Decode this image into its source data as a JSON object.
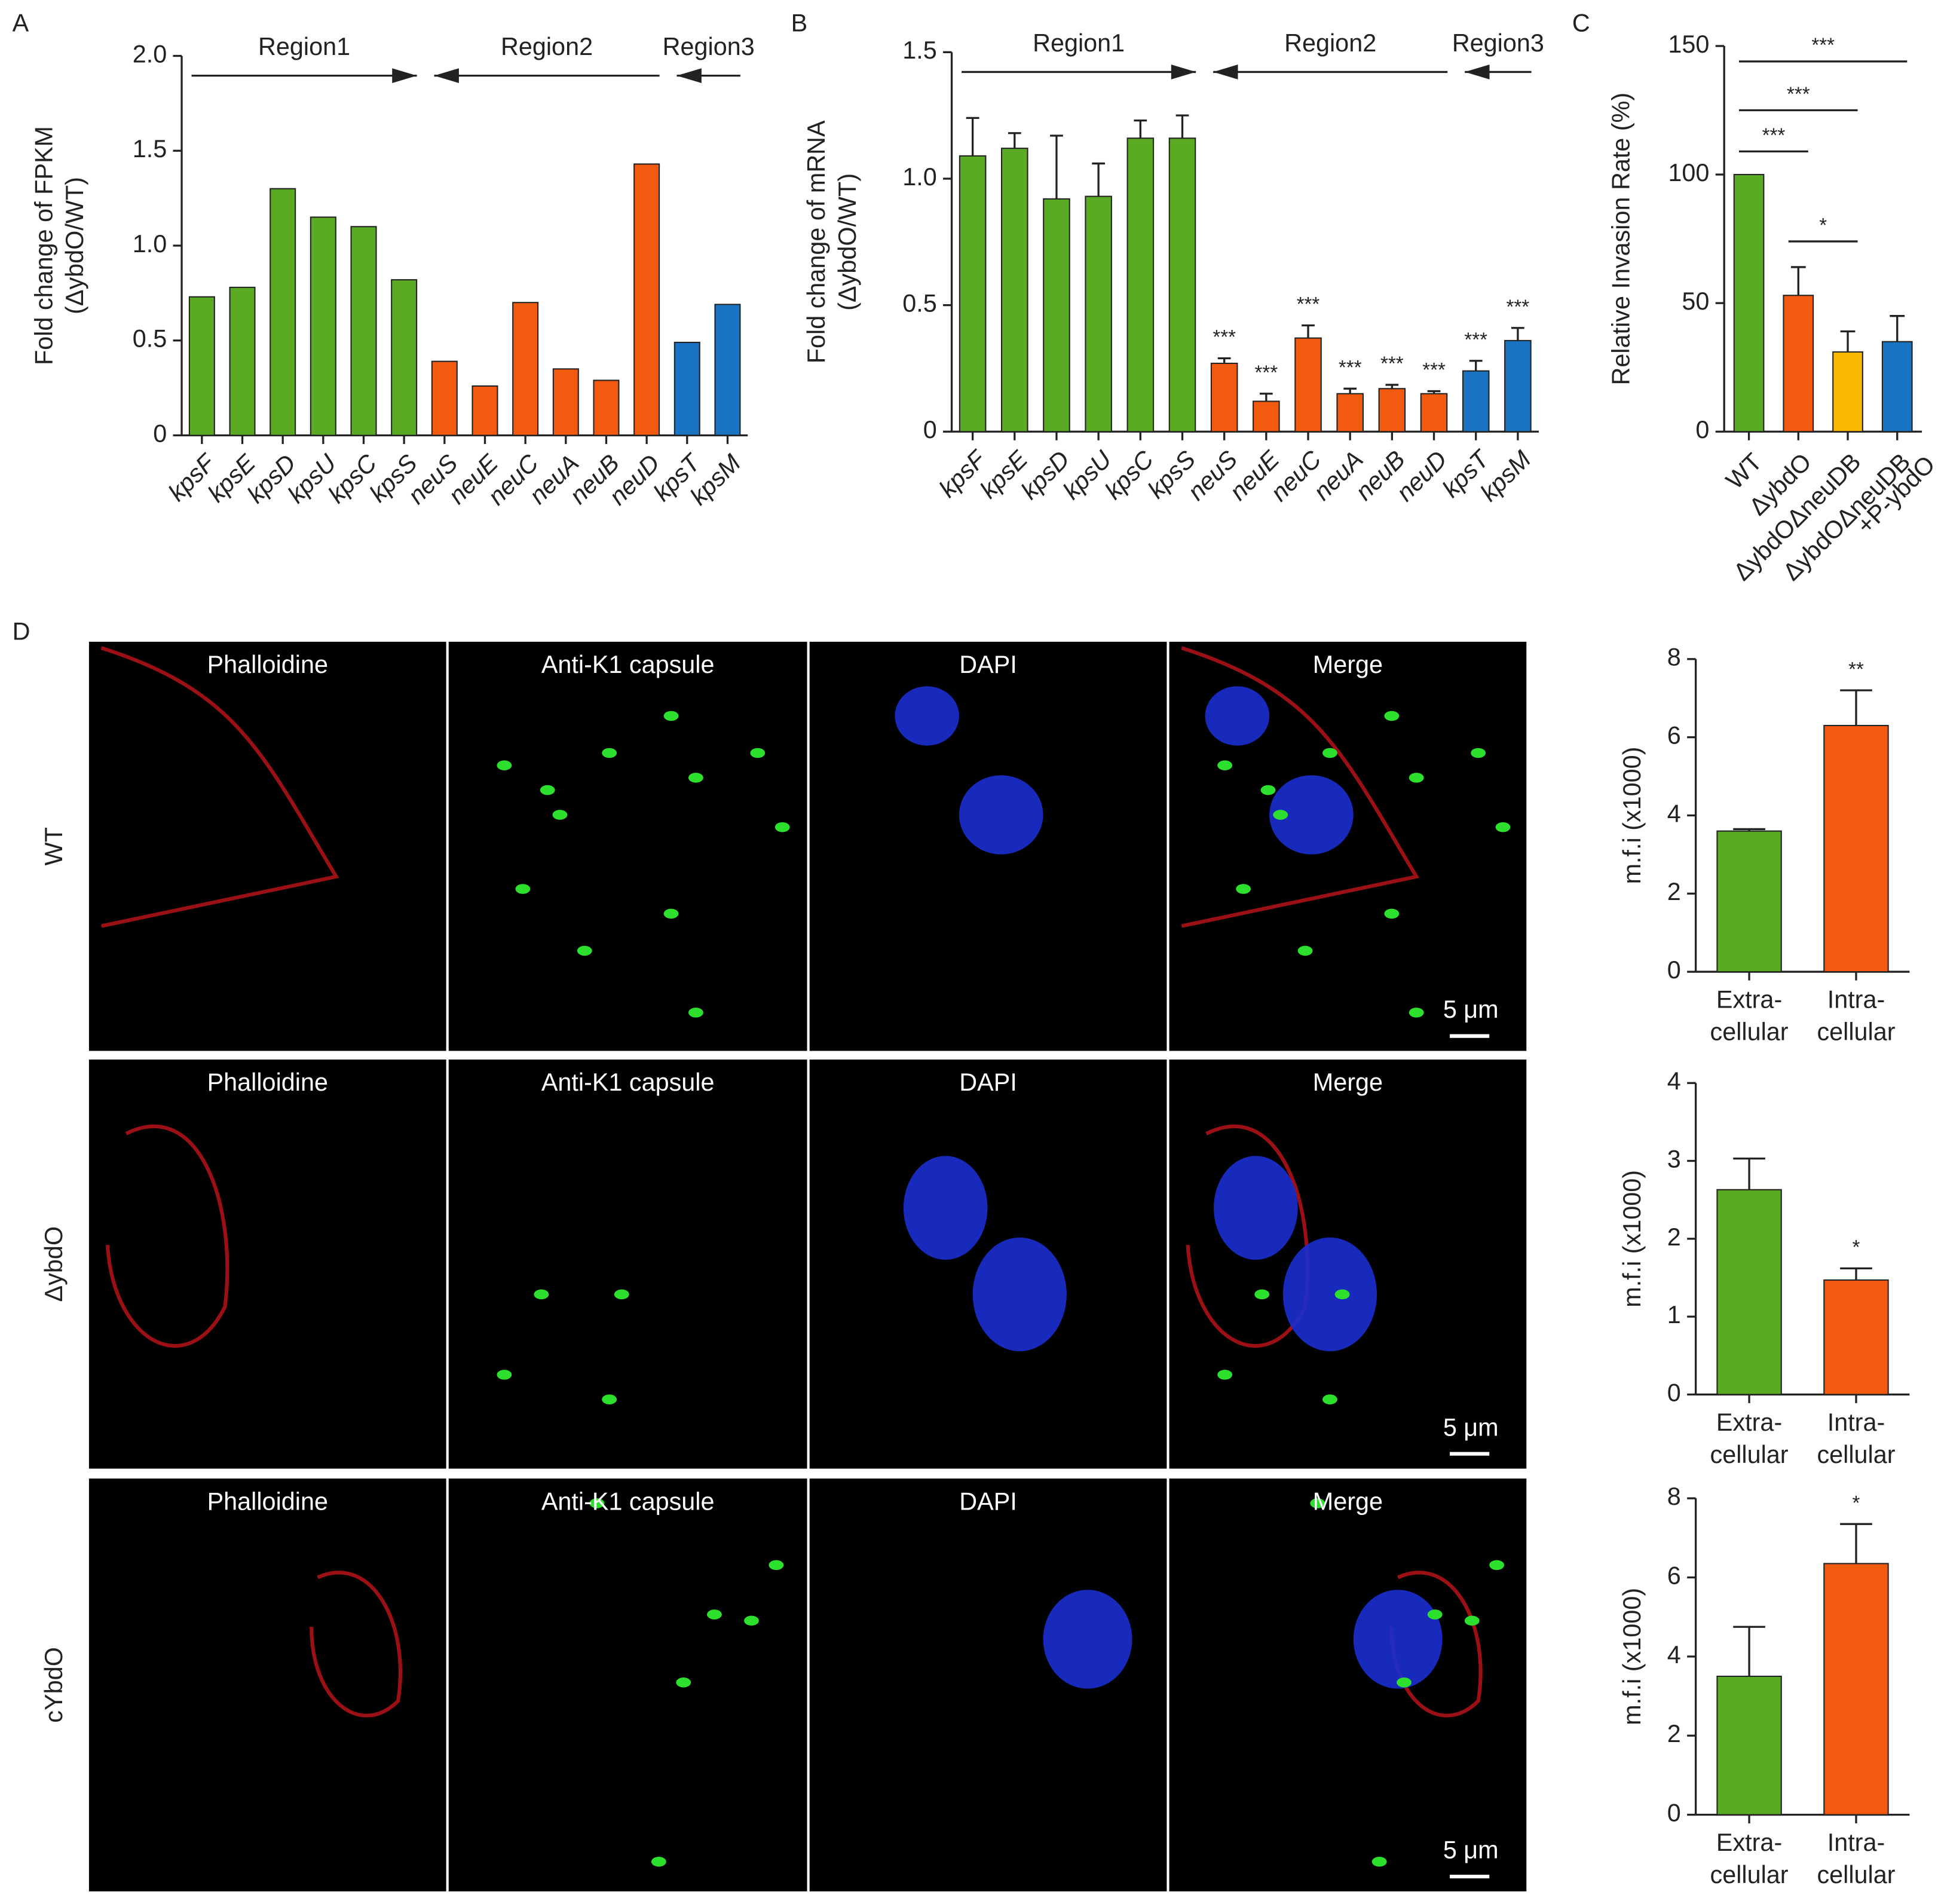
{
  "chart_data": [
    {
      "type": "bar",
      "label": "A",
      "ylabel": [
        "Fold change of FPKM",
        "(ΔybdO/WT)"
      ],
      "annotations": [
        "Region1",
        "Region2",
        "Region3"
      ],
      "categories": [
        "kpsF",
        "kpsE",
        "kpsD",
        "kpsU",
        "kpsC",
        "kpsS",
        "neuS",
        "neuE",
        "neuC",
        "neuA",
        "neuB",
        "neuD",
        "kpsT",
        "kpsM"
      ],
      "values": [
        0.73,
        0.78,
        1.3,
        1.15,
        1.1,
        0.82,
        0.39,
        0.26,
        0.7,
        0.35,
        0.29,
        1.43,
        0.49,
        0.69
      ],
      "colors": [
        "#5aab23",
        "#5aab23",
        "#5aab23",
        "#5aab23",
        "#5aab23",
        "#5aab23",
        "#f25a0f",
        "#f25a0f",
        "#f25a0f",
        "#f25a0f",
        "#f25a0f",
        "#f25a0f",
        "#1a74c4",
        "#1a74c4"
      ],
      "ylim": [
        0,
        2
      ],
      "yticks": [
        0,
        0.5,
        {
          "value": 1,
          "label": "1.0"
        },
        1.5,
        {
          "value": 2,
          "label": "2.0"
        }
      ]
    },
    {
      "type": "bar",
      "label": "B",
      "ylabel": [
        "Fold change of mRNA",
        "(ΔybdO/WT)"
      ],
      "annotations": [
        "Region1",
        "Region2",
        "Region3"
      ],
      "categories": [
        "kpsF",
        "kpsE",
        "kpsD",
        "kpsU",
        "kpsC",
        "kpsS",
        "neuS",
        "neuE",
        "neuC",
        "neuA",
        "neuB",
        "neuD",
        "kpsT",
        "kpsM"
      ],
      "values": [
        1.09,
        1.12,
        0.92,
        0.93,
        1.16,
        1.16,
        0.27,
        0.12,
        0.37,
        0.15,
        0.17,
        0.15,
        0.24,
        0.36
      ],
      "errors": [
        0.15,
        0.06,
        0.25,
        0.13,
        0.07,
        0.09,
        0.02,
        0.03,
        0.05,
        0.02,
        0.015,
        0.01,
        0.04,
        0.05
      ],
      "significance": [
        null,
        null,
        null,
        null,
        null,
        null,
        "***",
        "***",
        "***",
        "***",
        "***",
        "***",
        "***",
        "***"
      ],
      "colors": [
        "#5aab23",
        "#5aab23",
        "#5aab23",
        "#5aab23",
        "#5aab23",
        "#5aab23",
        "#f25a0f",
        "#f25a0f",
        "#f25a0f",
        "#f25a0f",
        "#f25a0f",
        "#f25a0f",
        "#1a74c4",
        "#1a74c4"
      ],
      "ylim": [
        0,
        1.5
      ],
      "yticks": [
        0,
        0.5,
        {
          "value": 1,
          "label": "1.0"
        },
        1.5
      ]
    },
    {
      "type": "bar",
      "label": "C",
      "ylabel": [
        "Relative Invasion Rate (%)"
      ],
      "categories": [
        [
          "WT"
        ],
        [
          "ΔybdO"
        ],
        [
          "ΔybdOΔneuDB"
        ],
        [
          "ΔybdOΔneuDB",
          "+P-ybdO"
        ]
      ],
      "values": [
        100,
        53,
        31,
        35
      ],
      "errors": [
        0,
        11,
        8,
        10
      ],
      "colors": [
        "#5aab23",
        "#f25a0f",
        "#f9b800",
        "#1a74c4"
      ],
      "comparisons": [
        {
          "between": [
            "WT",
            "ΔybdO"
          ],
          "label": "***"
        },
        {
          "between": [
            "WT",
            "ΔybdOΔneuDB"
          ],
          "label": "***"
        },
        {
          "between": [
            "WT",
            "ΔybdOΔneuDB +P-ybdO"
          ],
          "label": "***"
        },
        {
          "between": [
            "ΔybdO",
            "ΔybdOΔneuDB"
          ],
          "label": "*"
        }
      ],
      "ylim": [
        0,
        150
      ],
      "yticks": [
        0,
        50,
        100,
        150
      ]
    },
    {
      "type": "bar",
      "ylabel": [
        "m.f.i (x1000)"
      ],
      "categories": [
        [
          "Extra-",
          "cellular"
        ],
        [
          "Intra-",
          "cellular"
        ]
      ],
      "values": [
        3.6,
        6.3
      ],
      "errors": [
        0.05,
        0.9
      ],
      "significance": [
        null,
        "**"
      ],
      "colors": [
        "#5aab23",
        "#f25a0f"
      ],
      "ylim": [
        0,
        8
      ],
      "yticks": [
        0,
        2,
        4,
        6,
        8
      ]
    },
    {
      "type": "bar",
      "ylabel": [
        "m.f.i (x1000)"
      ],
      "categories": [
        [
          "Extra-",
          "cellular"
        ],
        [
          "Intra-",
          "cellular"
        ]
      ],
      "values": [
        2.63,
        1.47
      ],
      "errors": [
        0.4,
        0.15
      ],
      "significance": [
        null,
        "*"
      ],
      "colors": [
        "#5aab23",
        "#f25a0f"
      ],
      "ylim": [
        0,
        4
      ],
      "yticks": [
        0,
        1,
        2,
        3,
        4
      ]
    },
    {
      "type": "bar",
      "ylabel": [
        "m.f.i (x1000)"
      ],
      "categories": [
        [
          "Extra-",
          "cellular"
        ],
        [
          "Intra-",
          "cellular"
        ]
      ],
      "values": [
        3.5,
        6.35
      ],
      "errors": [
        1.25,
        1.0
      ],
      "significance": [
        null,
        "*"
      ],
      "colors": [
        "#5aab23",
        "#f25a0f"
      ],
      "ylim": [
        0,
        8
      ],
      "yticks": [
        0,
        2,
        4,
        6,
        8
      ]
    }
  ],
  "microscopy": {
    "label": "D",
    "columns": [
      "Phalloidine",
      "Anti-K1 capsule",
      "DAPI",
      "Merge"
    ],
    "rows": [
      "WT",
      "ΔybdO",
      "cYbdO"
    ],
    "scale_bar": "5 μm"
  }
}
